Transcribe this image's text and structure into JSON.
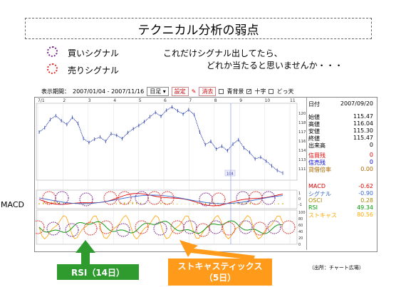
{
  "slide": {
    "title": "テクニカル分析の弱点",
    "legend_buy": "買いシグナル",
    "legend_sell": "売りシグナル",
    "comment_line1": "これだけシグナル出してたら、",
    "comment_line2": "どれか当たると思いませんか・・・",
    "macd_label": "MACD",
    "rsi_label": "RSI（14日）",
    "stoch_line1": "ストキャスティックス",
    "stoch_line2": "（5日）",
    "source": "（出所：チャート広場）"
  },
  "colors": {
    "buy_circle": "#7a2a8c",
    "sell_circle": "#e0302a",
    "price": "#2a3fae",
    "rsi_box": "#2f9b2f",
    "stoch_box": "#ff9a1a"
  },
  "toolbar": {
    "period_label": "表示期間：",
    "period_value": "2007/01/04 - 2007/11/16",
    "interval_value": "日足 ▾",
    "settings_button": "設定",
    "erase_button": "消去",
    "bg_toggle": "青背景",
    "crosshair_toggle": "十字",
    "dokoten_toggle": "どっ天"
  },
  "chart": {
    "month_labels": [
      "7/1",
      "2",
      "3",
      "4",
      "5",
      "6",
      "7",
      "8",
      "9",
      "10",
      "11"
    ],
    "price_ticks": [
      "120",
      "118",
      "117",
      "116",
      "114",
      "113",
      "111"
    ],
    "macd_ticks": [
      "1",
      "0",
      "-1"
    ],
    "osc_ticks": [
      "1",
      "0",
      "-1"
    ],
    "rsi_ticks": [
      "100",
      "80",
      "60",
      "40",
      "20",
      "0"
    ],
    "volume_tag": "104",
    "info_date_label": "日付",
    "info_date": "2007/09/20",
    "info_rows": [
      {
        "k": "始値",
        "v": "115.47",
        "color": "#000"
      },
      {
        "k": "高値",
        "v": "116.04",
        "color": "#000"
      },
      {
        "k": "安値",
        "v": "115.30",
        "color": "#000"
      },
      {
        "k": "終値",
        "v": "115.47",
        "color": "#000"
      },
      {
        "k": "出来高",
        "v": "0",
        "color": "#000"
      }
    ],
    "margin_rows": [
      {
        "k": "信買残",
        "v": "0",
        "color": "#d00"
      },
      {
        "k": "信売残",
        "v": "0",
        "color": "#00c"
      },
      {
        "k": "貸借倍率",
        "v": "0.00",
        "color": "#a60"
      }
    ],
    "indicator_rows": [
      {
        "k": "MACD",
        "v": "-0.62",
        "color": "#d00"
      },
      {
        "k": "シグナル",
        "v": "-0.90",
        "color": "#36c"
      },
      {
        "k": "OSCI",
        "v": "0.28",
        "color": "#a80"
      },
      {
        "k": "RSI",
        "v": "49.34",
        "color": "#090"
      },
      {
        "k": "ストキャス",
        "v": "80.56",
        "color": "#fa0"
      }
    ]
  },
  "chart_data": {
    "type": "line",
    "title": "",
    "x_range": [
      "2007/01/04",
      "2007/11/16"
    ],
    "series": [
      {
        "values": [
          118.5,
          119.3,
          120.8,
          121.5,
          120.6,
          119.9,
          121.2,
          120.1,
          117.3,
          116.6,
          117.2,
          117.6,
          116.8,
          118.2,
          117.9,
          117.3,
          118.4,
          119.1,
          119.7,
          120.4,
          121.3,
          122.1,
          121.4,
          122.5,
          123.1,
          122.4,
          121.8,
          122.6,
          121.7,
          118.5,
          116.2,
          116.8,
          115.4,
          115.9,
          115.1,
          116.3,
          117.1,
          115.6,
          114.8,
          113.6,
          113.9,
          113.2,
          112.3,
          111.5,
          111.0
        ]
      }
    ],
    "ylim": [
      111,
      123
    ]
  }
}
